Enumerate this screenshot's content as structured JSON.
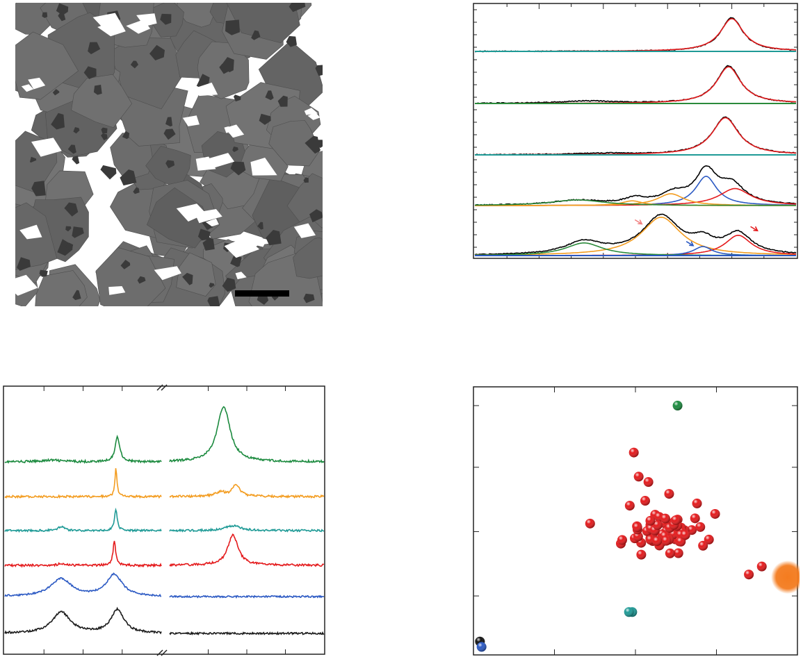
{
  "figure": {
    "micrograph": {
      "scale_bar": "",
      "colors": {
        "grain": "#6a6a6a",
        "dark_phase": "#3a3a3a",
        "pore": "#ffffff"
      }
    }
  },
  "chart_data": [
    {
      "type": "line",
      "title": "",
      "xlabel": "",
      "ylabel": "",
      "layout": "stacked-offset",
      "x_range": [
        0,
        1
      ],
      "grid": false,
      "legend": "none",
      "spectra": [
        {
          "series": [
            {
              "color": "#000000",
              "role": "measured",
              "peaks": [
                [
                  0.8,
                  0.78,
                  0.042
                ]
              ]
            },
            {
              "color": "#e41a1c",
              "role": "fit",
              "peaks": [
                [
                  0.8,
                  0.76,
                  0.044
                ]
              ]
            },
            {
              "color": "#1e9a96",
              "role": "baseline",
              "peaks": []
            }
          ]
        },
        {
          "series": [
            {
              "color": "#000000",
              "role": "measured",
              "peaks": [
                [
                  0.79,
                  0.82,
                  0.045
                ],
                [
                  0.35,
                  0.05,
                  0.1
                ]
              ]
            },
            {
              "color": "#e41a1c",
              "role": "fit",
              "peaks": [
                [
                  0.79,
                  0.8,
                  0.046
                ]
              ]
            },
            {
              "color": "#2a8a3a",
              "role": "baseline",
              "peaks": []
            }
          ]
        },
        {
          "series": [
            {
              "color": "#000000",
              "role": "measured",
              "peaks": [
                [
                  0.78,
                  0.82,
                  0.05
                ],
                [
                  0.4,
                  0.03,
                  0.1
                ]
              ]
            },
            {
              "color": "#e41a1c",
              "role": "fit",
              "peaks": [
                [
                  0.78,
                  0.81,
                  0.05
                ]
              ]
            },
            {
              "color": "#1e9a96",
              "role": "baseline",
              "peaks": []
            }
          ]
        },
        {
          "series": [
            {
              "color": "#000000",
              "role": "measured",
              "peaks": [
                [
                  0.72,
                  0.68,
                  0.04
                ],
                [
                  0.8,
                  0.4,
                  0.05
                ],
                [
                  0.62,
                  0.22,
                  0.05
                ],
                [
                  0.5,
                  0.12,
                  0.04
                ],
                [
                  0.32,
                  0.1,
                  0.1
                ]
              ]
            },
            {
              "color": "#2b59c3",
              "role": "component",
              "peaks": [
                [
                  0.72,
                  0.62,
                  0.04
                ]
              ]
            },
            {
              "color": "#e41a1c",
              "role": "component",
              "peaks": [
                [
                  0.81,
                  0.36,
                  0.06
                ]
              ]
            },
            {
              "color": "#f39c1f",
              "role": "component",
              "peaks": [
                [
                  0.61,
                  0.25,
                  0.05
                ]
              ]
            },
            {
              "color": "#f39c1f",
              "role": "component",
              "peaks": [
                [
                  0.49,
                  0.1,
                  0.04
                ]
              ]
            },
            {
              "color": "#2a8a3a",
              "role": "component",
              "peaks": [
                [
                  0.32,
                  0.12,
                  0.1
                ]
              ]
            }
          ]
        },
        {
          "series": [
            {
              "color": "#000000",
              "role": "measured",
              "peaks": [
                [
                  0.58,
                  0.85,
                  0.07
                ],
                [
                  0.82,
                  0.45,
                  0.05
                ],
                [
                  0.71,
                  0.25,
                  0.04
                ],
                [
                  0.34,
                  0.28,
                  0.07
                ]
              ]
            },
            {
              "color": "#f39c1f",
              "role": "component",
              "peaks": [
                [
                  0.58,
                  0.85,
                  0.075
                ]
              ]
            },
            {
              "color": "#e41a1c",
              "role": "component",
              "peaks": [
                [
                  0.82,
                  0.45,
                  0.05
                ]
              ]
            },
            {
              "color": "#2b59c3",
              "role": "component",
              "peaks": [
                [
                  0.71,
                  0.2,
                  0.035
                ]
              ]
            },
            {
              "color": "#2a8a3a",
              "role": "component",
              "peaks": [
                [
                  0.34,
                  0.28,
                  0.07
                ]
              ]
            },
            {
              "color": "#2b59c3",
              "role": "baseline",
              "peaks": []
            }
          ],
          "arrows": [
            {
              "color": "#f08080",
              "x": 0.52,
              "y": 0.7
            },
            {
              "color": "#2b59c3",
              "x": 0.68,
              "y": 0.22
            },
            {
              "color": "#e41a1c",
              "x": 0.88,
              "y": 0.55
            }
          ]
        }
      ]
    },
    {
      "type": "line",
      "title": "",
      "xlabel": "",
      "ylabel": "",
      "layout": "stacked-offset",
      "axis_break": true,
      "x_range": [
        0,
        1
      ],
      "grid": false,
      "legend": "none",
      "series": [
        {
          "color": "#1b8a3e",
          "left_peaks": [
            [
              0.72,
              0.45,
              0.018
            ],
            [
              0.3,
              0.03,
              0.08
            ]
          ],
          "right_peaks": [
            [
              0.35,
              1.0,
              0.05
            ]
          ]
        },
        {
          "color": "#f39c1f",
          "left_peaks": [
            [
              0.71,
              0.5,
              0.008
            ]
          ],
          "right_peaks": [
            [
              0.43,
              0.2,
              0.03
            ],
            [
              0.33,
              0.08,
              0.04
            ]
          ]
        },
        {
          "color": "#1e9a96",
          "left_peaks": [
            [
              0.71,
              0.45,
              0.01
            ],
            [
              0.36,
              0.08,
              0.025
            ]
          ],
          "right_peaks": [
            [
              0.41,
              0.1,
              0.06
            ]
          ]
        },
        {
          "color": "#e41a1c",
          "left_peaks": [
            [
              0.7,
              0.45,
              0.01
            ],
            [
              0.36,
              0.04,
              0.02
            ]
          ],
          "right_peaks": [
            [
              0.41,
              0.55,
              0.04
            ]
          ]
        },
        {
          "color": "#2b59c3",
          "left_peaks": [
            [
              0.36,
              0.42,
              0.08
            ],
            [
              0.7,
              0.52,
              0.06
            ]
          ],
          "right_peaks": []
        },
        {
          "color": "#1a1a1a",
          "left_peaks": [
            [
              0.36,
              0.45,
              0.07
            ],
            [
              0.72,
              0.5,
              0.05
            ]
          ],
          "right_peaks": []
        }
      ]
    },
    {
      "type": "scatter",
      "title": "",
      "xlabel": "",
      "ylabel": "",
      "x_range": [
        0,
        1
      ],
      "y_range": [
        0,
        1
      ],
      "grid": false,
      "legend": "none",
      "points": [
        {
          "x": 0.63,
          "y": 0.93,
          "color": "#1b8a3e"
        },
        {
          "x": 0.49,
          "y": 0.81,
          "color": "#1e9a96"
        },
        {
          "x": 0.02,
          "y": 0.05,
          "color": "#111111"
        },
        {
          "x": 0.025,
          "y": 0.03,
          "color": "#2b59c3"
        },
        {
          "x": 0.97,
          "y": 0.29,
          "color": "#f47c20",
          "big": true
        },
        {
          "x": 0.89,
          "y": 0.33,
          "color": "#e41a1c"
        },
        {
          "x": 0.85,
          "y": 0.3,
          "color": "#e41a1c"
        },
        {
          "x": 0.48,
          "y": 0.16,
          "color": "#1e9a96",
          "flip": true
        }
      ],
      "cluster": {
        "color": "#e41a1c",
        "count": 62,
        "cx": 0.58,
        "cy": 0.5,
        "sx": 0.09,
        "sy": 0.07
      },
      "outliers": [
        {
          "x": 0.495,
          "y": 0.755
        },
        {
          "x": 0.54,
          "y": 0.645
        },
        {
          "x": 0.51,
          "y": 0.665
        },
        {
          "x": 0.53,
          "y": 0.575
        },
        {
          "x": 0.69,
          "y": 0.565
        },
        {
          "x": 0.36,
          "y": 0.49
        }
      ]
    }
  ]
}
